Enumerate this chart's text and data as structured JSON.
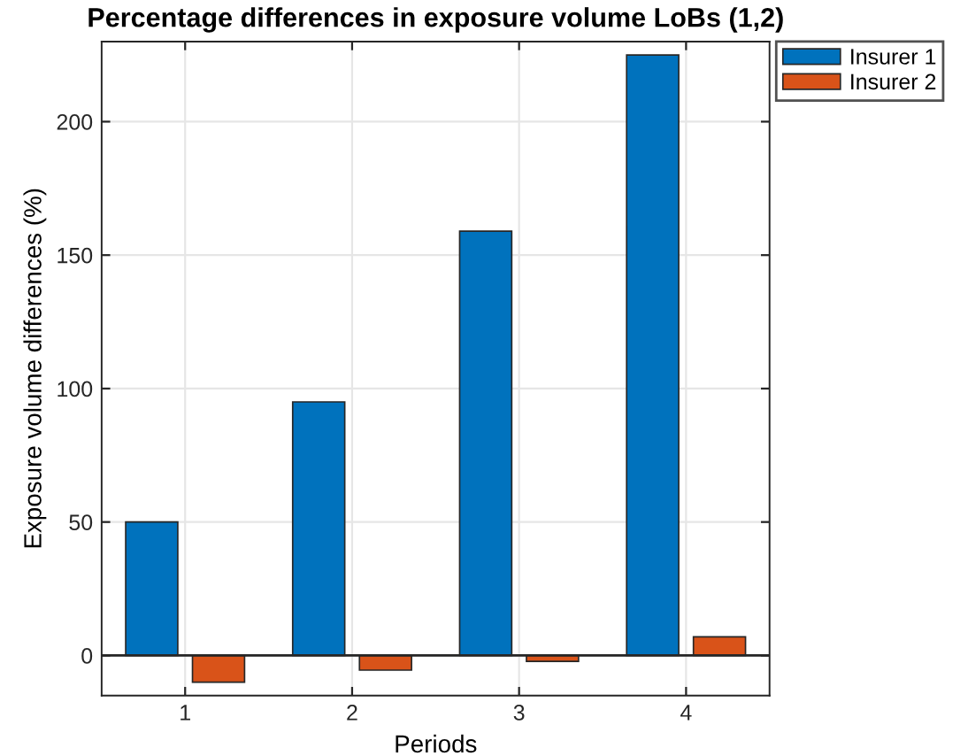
{
  "chart_data": {
    "type": "bar",
    "title": "Percentage differences in exposure volume LoBs (1,2)",
    "xlabel": "Periods",
    "ylabel": "Exposure volume differences (%)",
    "categories": [
      "1",
      "2",
      "3",
      "4"
    ],
    "series": [
      {
        "name": "Insurer 1",
        "color": "#0072bd",
        "values": [
          50,
          95,
          159,
          225
        ]
      },
      {
        "name": "Insurer 2",
        "color": "#d95319",
        "values": [
          -10,
          -5.5,
          -2.2,
          7
        ]
      }
    ],
    "ylim": [
      -15,
      230
    ],
    "yticks": [
      0,
      50,
      100,
      150,
      200
    ],
    "grid": true,
    "legend": "top right",
    "ref_lines": [
      {
        "axis": "y",
        "value": 0,
        "color": "#262626"
      }
    ]
  }
}
